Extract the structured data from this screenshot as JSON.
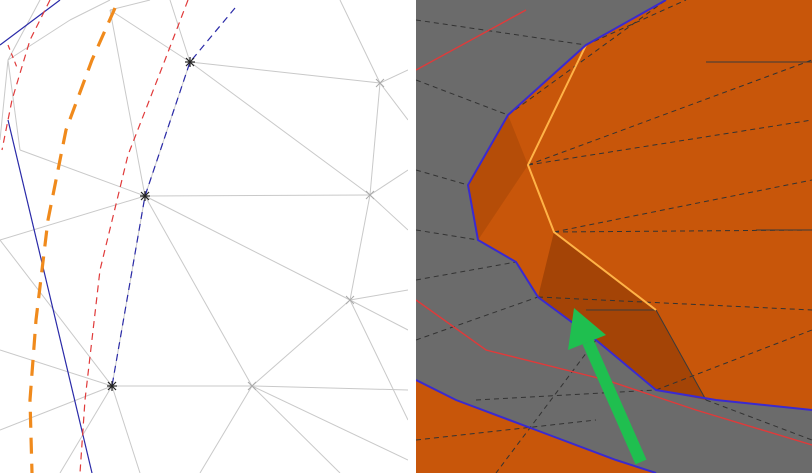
{
  "figure": {
    "panels": [
      {
        "id": "left",
        "view": "triangulated-mesh-wireframe"
      },
      {
        "id": "right",
        "view": "shaded-surface-mesh"
      }
    ],
    "colors": {
      "mesh_edge": "#c9c9c9",
      "vertex_marker": "#222222",
      "orange_curve": "#f08a1c",
      "red_curve": "#e03a3a",
      "blue_curve": "#2a2aa8",
      "gray_surface": "#6b6b6b",
      "orange_surface": "#c8560a",
      "orange_surface_dark": "#a44406",
      "highlight_edge": "#ffb347",
      "boundary": "#3a2ad0",
      "arrow": "#1fbf4f",
      "dashed_edge": "#333333"
    },
    "icons": [
      "green-arrow-icon",
      "vertex-star-icon"
    ]
  }
}
